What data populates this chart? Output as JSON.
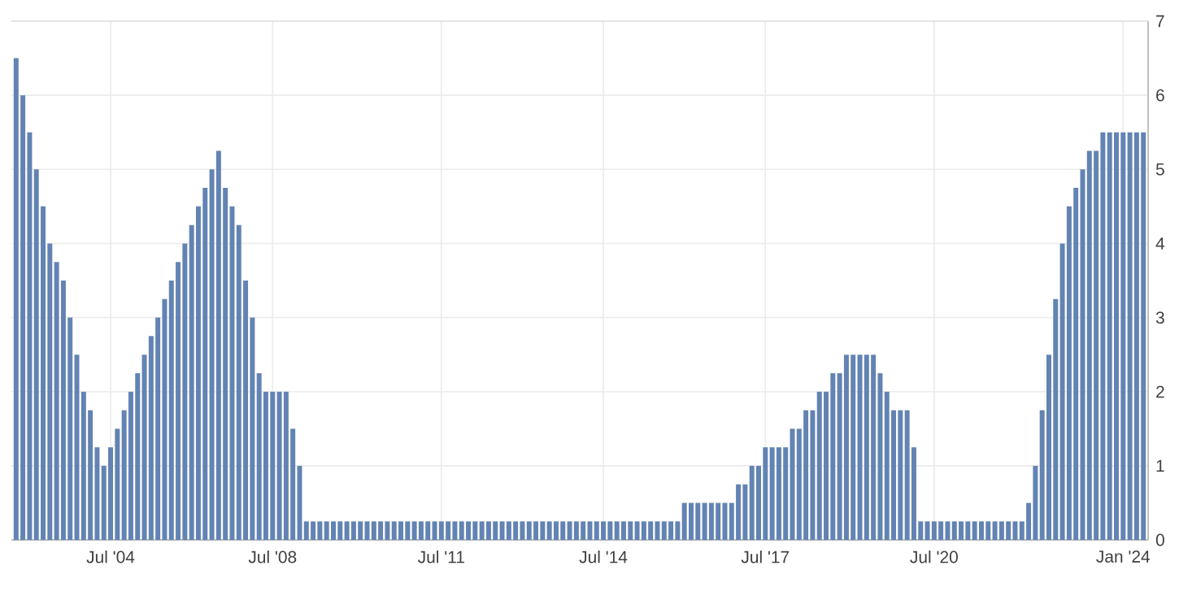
{
  "chart_data": {
    "type": "bar",
    "categories": [
      null,
      null,
      null,
      null,
      null,
      null,
      null,
      null,
      null,
      null,
      null,
      null,
      null,
      null,
      "Jul '04",
      null,
      null,
      null,
      null,
      null,
      null,
      null,
      null,
      null,
      null,
      null,
      null,
      null,
      null,
      null,
      null,
      null,
      null,
      null,
      null,
      null,
      null,
      null,
      "Jul '08",
      null,
      null,
      null,
      null,
      null,
      null,
      null,
      null,
      null,
      null,
      null,
      null,
      null,
      null,
      null,
      null,
      null,
      null,
      null,
      null,
      null,
      null,
      null,
      null,
      "Jul '11",
      null,
      null,
      null,
      null,
      null,
      null,
      null,
      null,
      null,
      null,
      null,
      null,
      null,
      null,
      null,
      null,
      null,
      null,
      null,
      null,
      null,
      null,
      null,
      "Jul '14",
      null,
      null,
      null,
      null,
      null,
      null,
      null,
      null,
      null,
      null,
      null,
      null,
      null,
      null,
      null,
      null,
      null,
      null,
      null,
      null,
      null,
      null,
      null,
      "Jul '17",
      null,
      null,
      null,
      null,
      null,
      null,
      null,
      null,
      null,
      null,
      null,
      null,
      null,
      null,
      null,
      null,
      null,
      null,
      null,
      null,
      null,
      null,
      null,
      null,
      "Jul '20",
      null,
      null,
      null,
      null,
      null,
      null,
      null,
      null,
      null,
      null,
      null,
      null,
      null,
      null,
      null,
      null,
      null,
      null,
      null,
      null,
      null,
      null,
      null,
      null,
      null,
      null,
      null,
      "Jan '24",
      null,
      null,
      null
    ],
    "values": [
      6.5,
      6.0,
      5.5,
      5.0,
      4.5,
      4.0,
      3.75,
      3.5,
      3.0,
      2.5,
      2.0,
      1.75,
      1.25,
      1.0,
      1.25,
      1.5,
      1.75,
      2.0,
      2.25,
      2.5,
      2.75,
      3.0,
      3.25,
      3.5,
      3.75,
      4.0,
      4.25,
      4.5,
      4.75,
      5.0,
      5.25,
      4.75,
      4.5,
      4.25,
      3.5,
      3.0,
      2.25,
      2.0,
      2.0,
      2.0,
      2.0,
      1.5,
      1.0,
      0.25,
      0.25,
      0.25,
      0.25,
      0.25,
      0.25,
      0.25,
      0.25,
      0.25,
      0.25,
      0.25,
      0.25,
      0.25,
      0.25,
      0.25,
      0.25,
      0.25,
      0.25,
      0.25,
      0.25,
      0.25,
      0.25,
      0.25,
      0.25,
      0.25,
      0.25,
      0.25,
      0.25,
      0.25,
      0.25,
      0.25,
      0.25,
      0.25,
      0.25,
      0.25,
      0.25,
      0.25,
      0.25,
      0.25,
      0.25,
      0.25,
      0.25,
      0.25,
      0.25,
      0.25,
      0.25,
      0.25,
      0.25,
      0.25,
      0.25,
      0.25,
      0.25,
      0.25,
      0.25,
      0.25,
      0.25,
      0.5,
      0.5,
      0.5,
      0.5,
      0.5,
      0.5,
      0.5,
      0.5,
      0.75,
      0.75,
      1.0,
      1.0,
      1.25,
      1.25,
      1.25,
      1.25,
      1.5,
      1.5,
      1.75,
      1.75,
      2.0,
      2.0,
      2.25,
      2.25,
      2.5,
      2.5,
      2.5,
      2.5,
      2.5,
      2.25,
      2.0,
      1.75,
      1.75,
      1.75,
      1.25,
      0.25,
      0.25,
      0.25,
      0.25,
      0.25,
      0.25,
      0.25,
      0.25,
      0.25,
      0.25,
      0.25,
      0.25,
      0.25,
      0.25,
      0.25,
      0.25,
      0.5,
      1.0,
      1.75,
      2.5,
      3.25,
      4.0,
      4.5,
      4.75,
      5.0,
      5.25,
      5.25,
      5.5,
      5.5,
      5.5,
      5.5,
      5.5,
      5.5,
      5.5
    ],
    "color": "#6283b3",
    "ylim": [
      0,
      7
    ],
    "yticks": [
      0,
      1,
      2,
      3,
      4,
      5,
      6,
      7
    ],
    "grid": true
  }
}
